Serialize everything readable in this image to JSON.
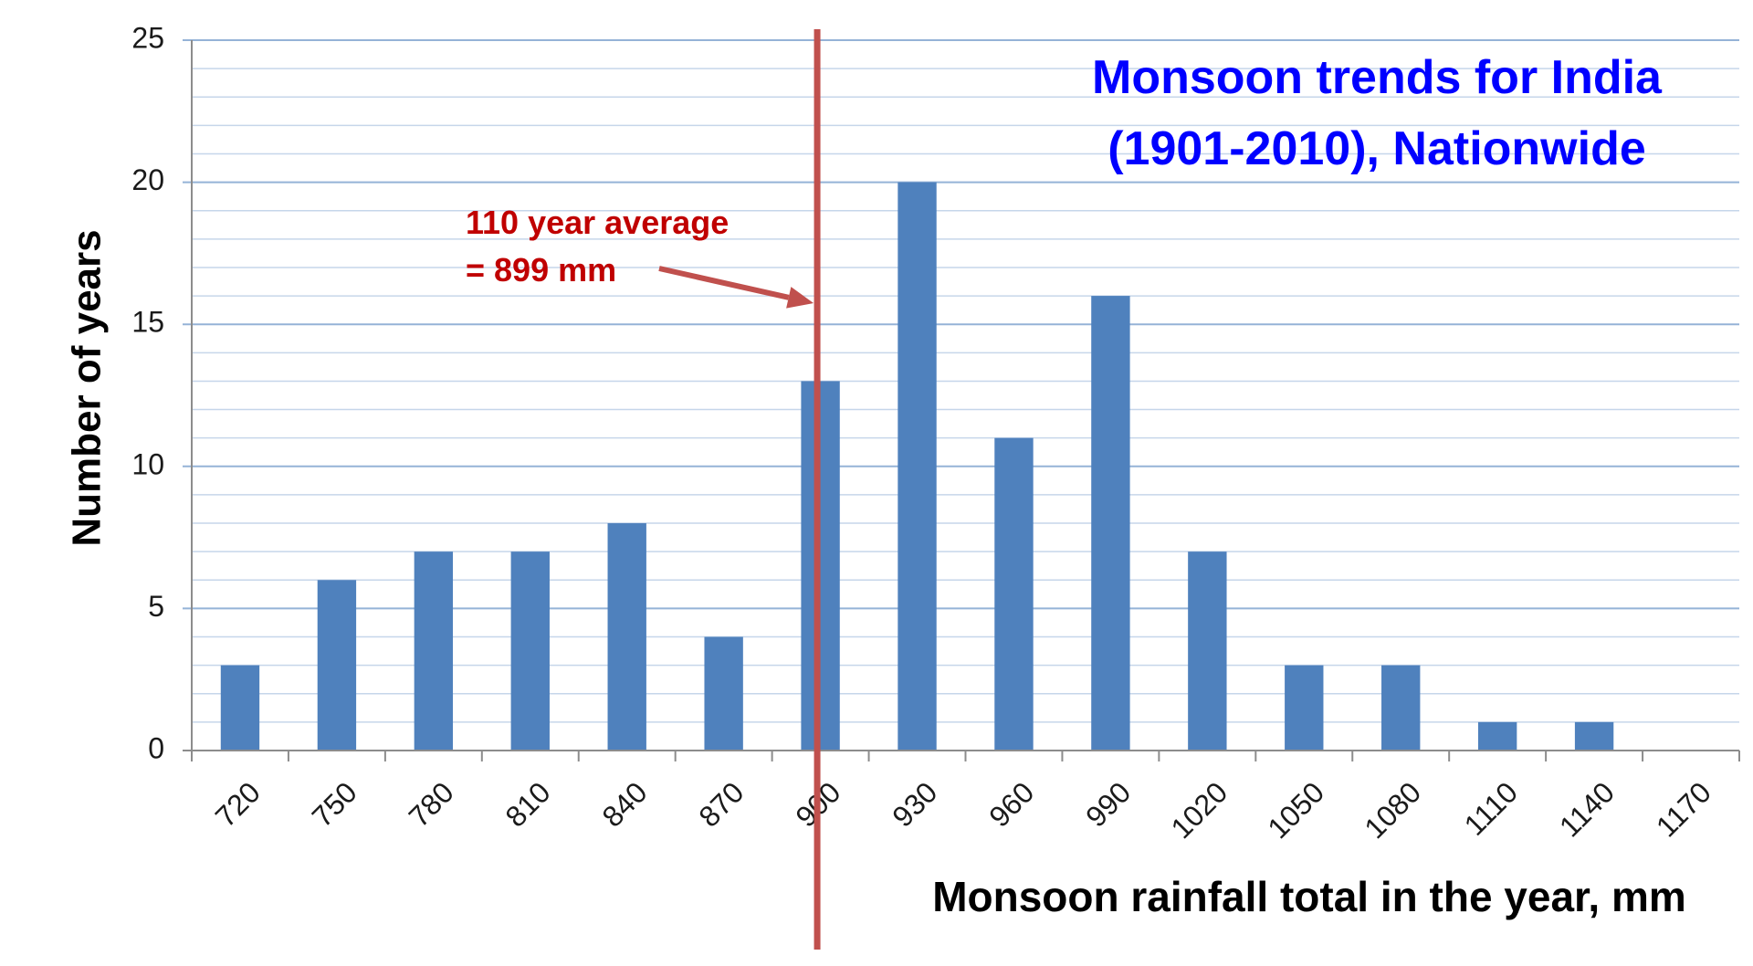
{
  "chart_data": {
    "type": "bar",
    "title_lines": [
      "Monsoon trends for India",
      "(1901-2010), Nationwide"
    ],
    "xlabel": "Monsoon rainfall total in the year, mm",
    "ylabel": "Number of years",
    "categories": [
      "720",
      "750",
      "780",
      "810",
      "840",
      "870",
      "900",
      "930",
      "960",
      "990",
      "1020",
      "1050",
      "1080",
      "1110",
      "1140",
      "1170"
    ],
    "values": [
      3,
      6,
      7,
      7,
      8,
      4,
      13,
      20,
      11,
      16,
      7,
      3,
      3,
      1,
      1,
      0
    ],
    "ylim": [
      0,
      25
    ],
    "yticks": [
      0,
      5,
      10,
      15,
      20,
      25
    ],
    "grid": true,
    "average_line": {
      "value": 899,
      "label_lines": [
        "110 year average",
        "= 899 mm"
      ]
    },
    "colors": {
      "bar": "#4f81bd",
      "grid": "#95b3d7",
      "average_line": "#c0504d",
      "annotation": "#c00000",
      "title": "#0000ff"
    }
  }
}
